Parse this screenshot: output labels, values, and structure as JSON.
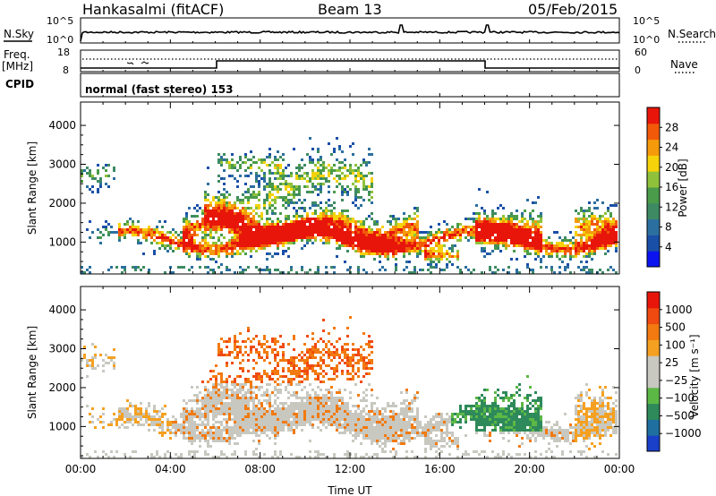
{
  "header": {
    "station": "Hankasalmi (fitACF)",
    "beam": "Beam 13",
    "date": "05/Feb/2015"
  },
  "top_panels": {
    "nsky_label": "N.Sky",
    "nsky_ticks": [
      "10^5",
      "10^0"
    ],
    "nsearch_label": "N.Search",
    "nsearch_ticks": [
      "10^5",
      "10^0"
    ],
    "freq_label_1": "Freq.",
    "freq_label_2": "[MHz]",
    "freq_ticks": [
      "18",
      "8"
    ],
    "nave_label": "Nave",
    "nave_ticks": [
      "60",
      "0"
    ],
    "cpid_label": "CPID",
    "cpid_text": "normal (fast stereo) 153"
  },
  "chart_data": [
    {
      "type": "heatmap",
      "name": "power",
      "ylabel": "Slant Range [km]",
      "xlabel": "",
      "x_ticks": [
        "00:00",
        "04:00",
        "08:00",
        "12:00",
        "16:00",
        "20:00",
        "00:00"
      ],
      "x_range_hours": [
        0,
        24
      ],
      "y_ticks": [
        1000,
        2000,
        3000,
        4000
      ],
      "ylim": [
        180,
        4600
      ],
      "colorbar_label": "Power [dB]",
      "colorbar_ticks": [
        "28",
        "24",
        "20",
        "16",
        "12",
        "8",
        "4"
      ],
      "colorbar_colors": [
        "#0b14f0",
        "#1a4fa8",
        "#2b6fa0",
        "#3d8a63",
        "#4a9b4a",
        "#8fc23a",
        "#f5d20a",
        "#f59a0a",
        "#f25a0a",
        "#e8160a"
      ]
    },
    {
      "type": "heatmap",
      "name": "velocity",
      "ylabel": "Slant Range [km]",
      "xlabel": "Time UT",
      "x_ticks": [
        "00:00",
        "04:00",
        "08:00",
        "12:00",
        "16:00",
        "20:00",
        "00:00"
      ],
      "x_range_hours": [
        0,
        24
      ],
      "y_ticks": [
        1000,
        2000,
        3000,
        4000
      ],
      "ylim": [
        180,
        4600
      ],
      "colorbar_label": "Velocity [m s⁻¹]",
      "colorbar_ticks": [
        "1000",
        "500",
        "100",
        "25",
        "−25",
        "−100",
        "−500",
        "−1000"
      ],
      "colorbar_colors": [
        "#1a3fc8",
        "#1f6fa0",
        "#2e8a5a",
        "#5cb845",
        "#c8c8c0",
        "#c8c8c0",
        "#f5a020",
        "#f27a10",
        "#f04a10",
        "#e8160a"
      ]
    }
  ]
}
